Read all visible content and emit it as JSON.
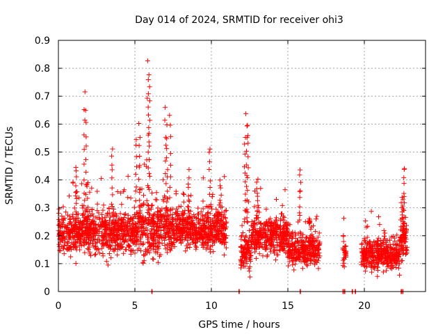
{
  "chart_data": {
    "type": "scatter",
    "title": "Day 014 of 2024, SRMTID for receiver ohi3",
    "xlabel": "GPS time / hours",
    "ylabel": "SRMTID / TECUs",
    "xlim": [
      0,
      24
    ],
    "ylim": [
      0,
      0.9
    ],
    "x_ticks": [
      0,
      5,
      10,
      15,
      20
    ],
    "x_tick_labels": [
      "0",
      "5",
      "10",
      "15",
      "20"
    ],
    "y_ticks": [
      0,
      0.1,
      0.2,
      0.3,
      0.4,
      0.5,
      0.6,
      0.7,
      0.8,
      0.9
    ],
    "y_tick_labels": [
      "0",
      "0.1",
      "0.2",
      "0.3",
      "0.4",
      "0.5",
      "0.6",
      "0.7",
      "0.8",
      "0.9"
    ],
    "grid": true,
    "marker": "+",
    "color": "#ff0000",
    "series": [
      {
        "name": "SRMTID",
        "segments": [
          {
            "start": 0.0,
            "end": 5.2,
            "base": 0.21,
            "spread": 0.07
          },
          {
            "start": 5.2,
            "end": 7.2,
            "base": 0.22,
            "spread": 0.09
          },
          {
            "start": 7.2,
            "end": 11.0,
            "base": 0.22,
            "spread": 0.06
          },
          {
            "start": 11.9,
            "end": 12.6,
            "base": 0.14,
            "spread": 0.06
          },
          {
            "start": 12.6,
            "end": 15.0,
            "base": 0.2,
            "spread": 0.06
          },
          {
            "start": 15.0,
            "end": 17.1,
            "base": 0.15,
            "spread": 0.05
          },
          {
            "start": 18.6,
            "end": 18.8,
            "base": 0.14,
            "spread": 0.04
          },
          {
            "start": 19.8,
            "end": 22.3,
            "base": 0.13,
            "spread": 0.05
          },
          {
            "start": 22.3,
            "end": 22.8,
            "base": 0.19,
            "spread": 0.06
          }
        ],
        "spikes": [
          {
            "x": 1.7,
            "y": 0.71
          },
          {
            "x": 1.8,
            "y": 0.65
          },
          {
            "x": 1.15,
            "y": 0.45
          },
          {
            "x": 3.5,
            "y": 0.52
          },
          {
            "x": 5.1,
            "y": 0.55
          },
          {
            "x": 5.3,
            "y": 0.6
          },
          {
            "x": 5.85,
            "y": 0.82
          },
          {
            "x": 5.9,
            "y": 0.77
          },
          {
            "x": 5.95,
            "y": 0.73
          },
          {
            "x": 7.0,
            "y": 0.65
          },
          {
            "x": 7.3,
            "y": 0.63
          },
          {
            "x": 7.1,
            "y": 0.59
          },
          {
            "x": 8.5,
            "y": 0.43
          },
          {
            "x": 9.9,
            "y": 0.52
          },
          {
            "x": 10.6,
            "y": 0.4
          },
          {
            "x": 12.3,
            "y": 0.63
          },
          {
            "x": 12.4,
            "y": 0.6
          },
          {
            "x": 12.2,
            "y": 0.56
          },
          {
            "x": 13.0,
            "y": 0.41
          },
          {
            "x": 15.8,
            "y": 0.43
          },
          {
            "x": 16.4,
            "y": 0.26
          },
          {
            "x": 22.6,
            "y": 0.45
          },
          {
            "x": 22.5,
            "y": 0.33
          }
        ],
        "zero_points": [
          6.1,
          11.8,
          15.8,
          18.6,
          18.7,
          19.2,
          19.4,
          22.4,
          22.5
        ]
      }
    ]
  }
}
